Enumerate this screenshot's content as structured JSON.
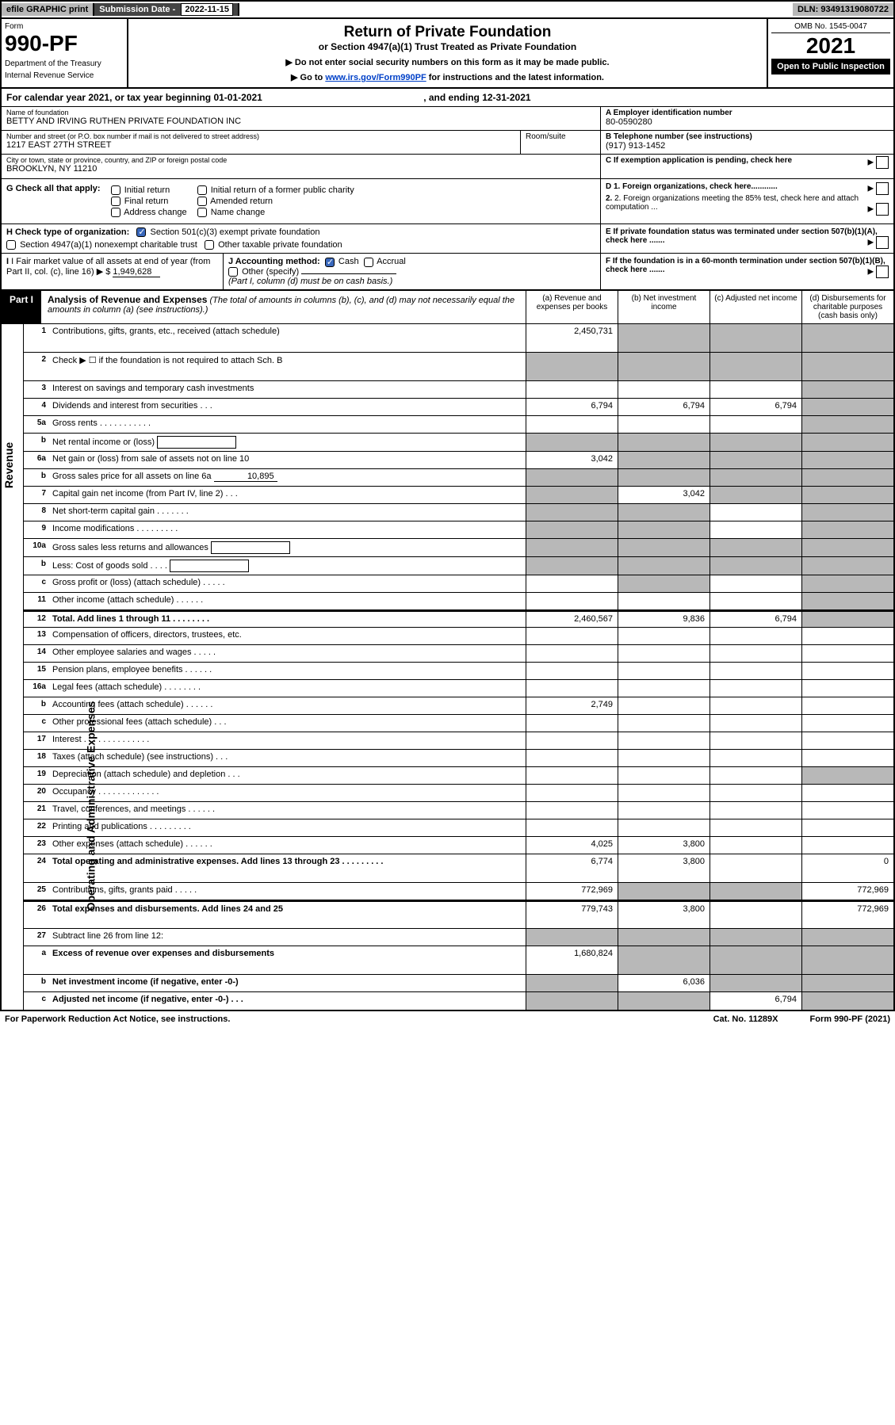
{
  "topbar": {
    "efile": "efile GRAPHIC print",
    "subdate_label": "Submission Date",
    "subdate_value": "2022-11-15",
    "dln": "DLN: 93491319080722"
  },
  "header": {
    "form_label": "Form",
    "form_number": "990-PF",
    "dept": "Department of the Treasury",
    "irs": "Internal Revenue Service",
    "title": "Return of Private Foundation",
    "subtitle": "or Section 4947(a)(1) Trust Treated as Private Foundation",
    "instr1": "▶ Do not enter social security numbers on this form as it may be made public.",
    "instr2_pre": "▶ Go to ",
    "instr2_link": "www.irs.gov/Form990PF",
    "instr2_post": " for instructions and the latest information.",
    "omb": "OMB No. 1545-0047",
    "year": "2021",
    "inspection": "Open to Public Inspection"
  },
  "calyear": {
    "text_pre": "For calendar year 2021, or tax year beginning ",
    "begin": "01-01-2021",
    "text_mid": " , and ending ",
    "end": "12-31-2021"
  },
  "info": {
    "name_label": "Name of foundation",
    "name": "BETTY AND IRVING RUTHEN PRIVATE FOUNDATION INC",
    "addr_label": "Number and street (or P.O. box number if mail is not delivered to street address)",
    "addr": "1217 EAST 27TH STREET",
    "room_label": "Room/suite",
    "city_label": "City or town, state or province, country, and ZIP or foreign postal code",
    "city": "BROOKLYN, NY  11210",
    "a_label": "A Employer identification number",
    "a_val": "80-0590280",
    "b_label": "B Telephone number (see instructions)",
    "b_val": "(917) 913-1452",
    "c_label": "C If exemption application is pending, check here"
  },
  "g_section": {
    "label": "G Check all that apply:",
    "opts": [
      "Initial return",
      "Final return",
      "Address change",
      "Initial return of a former public charity",
      "Amended return",
      "Name change"
    ]
  },
  "d_section": {
    "d1": "D 1. Foreign organizations, check here............",
    "d2": "2. Foreign organizations meeting the 85% test, check here and attach computation ...",
    "e": "E  If private foundation status was terminated under section 507(b)(1)(A), check here .......",
    "f": "F  If the foundation is in a 60-month termination under section 507(b)(1)(B), check here ......."
  },
  "h_section": {
    "label": "H Check type of organization:",
    "opt1": "Section 501(c)(3) exempt private foundation",
    "opt2": "Section 4947(a)(1) nonexempt charitable trust",
    "opt3": "Other taxable private foundation"
  },
  "i_section": {
    "label": "I Fair market value of all assets at end of year (from Part II, col. (c), line 16)",
    "value": "1,949,628",
    "j_label": "J Accounting method:",
    "j_cash": "Cash",
    "j_accrual": "Accrual",
    "j_other": "Other (specify)",
    "j_note": "(Part I, column (d) must be on cash basis.)"
  },
  "part1": {
    "label": "Part I",
    "title": "Analysis of Revenue and Expenses",
    "note": "(The total of amounts in columns (b), (c), and (d) may not necessarily equal the amounts in column (a) (see instructions).)",
    "col_a": "(a) Revenue and expenses per books",
    "col_b": "(b) Net investment income",
    "col_c": "(c) Adjusted net income",
    "col_d": "(d) Disbursements for charitable purposes (cash basis only)"
  },
  "side_labels": {
    "revenue": "Revenue",
    "expenses": "Operating and Administrative Expenses"
  },
  "rows": [
    {
      "num": "1",
      "desc": "Contributions, gifts, grants, etc., received (attach schedule)",
      "a": "2,450,731",
      "b": "",
      "c": "",
      "d": "",
      "tall": true,
      "grey_bcd": true
    },
    {
      "num": "2",
      "desc": "Check ▶ ☐ if the foundation is not required to attach Sch. B",
      "a": "",
      "b": "",
      "c": "",
      "d": "",
      "grey_all": true,
      "tall": true,
      "dots": true
    },
    {
      "num": "3",
      "desc": "Interest on savings and temporary cash investments",
      "a": "",
      "b": "",
      "c": "",
      "d": "",
      "grey_d": true
    },
    {
      "num": "4",
      "desc": "Dividends and interest from securities   .   .   .",
      "a": "6,794",
      "b": "6,794",
      "c": "6,794",
      "d": "",
      "grey_d": true
    },
    {
      "num": "5a",
      "desc": "Gross rents   .   .   .   .   .   .   .   .   .   .   .",
      "a": "",
      "b": "",
      "c": "",
      "d": "",
      "grey_d": true
    },
    {
      "num": "b",
      "desc": "Net rental income or (loss)",
      "a": "",
      "b": "",
      "c": "",
      "d": "",
      "has_box": true,
      "grey_all": true
    },
    {
      "num": "6a",
      "desc": "Net gain or (loss) from sale of assets not on line 10",
      "a": "3,042",
      "b": "",
      "c": "",
      "d": "",
      "grey_bcd": true
    },
    {
      "num": "b",
      "desc": "Gross sales price for all assets on line 6a",
      "sub_val": "10,895",
      "a": "",
      "b": "",
      "c": "",
      "d": "",
      "grey_all": true,
      "has_sub": true
    },
    {
      "num": "7",
      "desc": "Capital gain net income (from Part IV, line 2)   .   .   .",
      "a": "",
      "b": "3,042",
      "c": "",
      "d": "",
      "grey_a": true,
      "grey_cd": true
    },
    {
      "num": "8",
      "desc": "Net short-term capital gain   .   .   .   .   .   .   .",
      "a": "",
      "b": "",
      "c": "",
      "d": "",
      "grey_ab": true,
      "grey_d": true
    },
    {
      "num": "9",
      "desc": "Income modifications   .   .   .   .   .   .   .   .   .",
      "a": "",
      "b": "",
      "c": "",
      "d": "",
      "grey_ab": true,
      "grey_d": true
    },
    {
      "num": "10a",
      "desc": "Gross sales less returns and allowances",
      "a": "",
      "b": "",
      "c": "",
      "d": "",
      "has_box": true,
      "grey_all": true
    },
    {
      "num": "b",
      "desc": "Less: Cost of goods sold   .   .   .   .",
      "a": "",
      "b": "",
      "c": "",
      "d": "",
      "has_box": true,
      "grey_all": true
    },
    {
      "num": "c",
      "desc": "Gross profit or (loss) (attach schedule)   .   .   .   .   .",
      "a": "",
      "b": "",
      "c": "",
      "d": "",
      "grey_b": true,
      "grey_d": true
    },
    {
      "num": "11",
      "desc": "Other income (attach schedule)   .   .   .   .   .   .",
      "a": "",
      "b": "",
      "c": "",
      "d": "",
      "grey_d": true
    },
    {
      "num": "12",
      "desc": "Total. Add lines 1 through 11   .   .   .   .   .   .   .   .",
      "a": "2,460,567",
      "b": "9,836",
      "c": "6,794",
      "d": "",
      "bold": true,
      "grey_d": true,
      "split": true
    },
    {
      "num": "13",
      "desc": "Compensation of officers, directors, trustees, etc.",
      "a": "",
      "b": "",
      "c": "",
      "d": ""
    },
    {
      "num": "14",
      "desc": "Other employee salaries and wages   .   .   .   .   .",
      "a": "",
      "b": "",
      "c": "",
      "d": ""
    },
    {
      "num": "15",
      "desc": "Pension plans, employee benefits   .   .   .   .   .   .",
      "a": "",
      "b": "",
      "c": "",
      "d": ""
    },
    {
      "num": "16a",
      "desc": "Legal fees (attach schedule)   .   .   .   .   .   .   .   .",
      "a": "",
      "b": "",
      "c": "",
      "d": ""
    },
    {
      "num": "b",
      "desc": "Accounting fees (attach schedule)   .   .   .   .   .   .",
      "a": "2,749",
      "b": "",
      "c": "",
      "d": ""
    },
    {
      "num": "c",
      "desc": "Other professional fees (attach schedule)   .   .   .",
      "a": "",
      "b": "",
      "c": "",
      "d": ""
    },
    {
      "num": "17",
      "desc": "Interest   .   .   .   .   .   .   .   .   .   .   .   .   .   .",
      "a": "",
      "b": "",
      "c": "",
      "d": ""
    },
    {
      "num": "18",
      "desc": "Taxes (attach schedule) (see instructions)   .   .   .",
      "a": "",
      "b": "",
      "c": "",
      "d": ""
    },
    {
      "num": "19",
      "desc": "Depreciation (attach schedule) and depletion   .   .   .",
      "a": "",
      "b": "",
      "c": "",
      "d": "",
      "grey_d": true
    },
    {
      "num": "20",
      "desc": "Occupancy   .   .   .   .   .   .   .   .   .   .   .   .   .",
      "a": "",
      "b": "",
      "c": "",
      "d": ""
    },
    {
      "num": "21",
      "desc": "Travel, conferences, and meetings   .   .   .   .   .   .",
      "a": "",
      "b": "",
      "c": "",
      "d": ""
    },
    {
      "num": "22",
      "desc": "Printing and publications   .   .   .   .   .   .   .   .   .",
      "a": "",
      "b": "",
      "c": "",
      "d": ""
    },
    {
      "num": "23",
      "desc": "Other expenses (attach schedule)   .   .   .   .   .   .",
      "a": "4,025",
      "b": "3,800",
      "c": "",
      "d": ""
    },
    {
      "num": "24",
      "desc": "Total operating and administrative expenses. Add lines 13 through 23   .   .   .   .   .   .   .   .   .",
      "a": "6,774",
      "b": "3,800",
      "c": "",
      "d": "0",
      "bold": true,
      "tall": true
    },
    {
      "num": "25",
      "desc": "Contributions, gifts, grants paid   .   .   .   .   .",
      "a": "772,969",
      "b": "",
      "c": "",
      "d": "772,969",
      "grey_bc": true
    },
    {
      "num": "26",
      "desc": "Total expenses and disbursements. Add lines 24 and 25",
      "a": "779,743",
      "b": "3,800",
      "c": "",
      "d": "772,969",
      "bold": true,
      "tall": true,
      "split": true
    },
    {
      "num": "27",
      "desc": "Subtract line 26 from line 12:",
      "a": "",
      "b": "",
      "c": "",
      "d": "",
      "grey_all": true
    },
    {
      "num": "a",
      "desc": "Excess of revenue over expenses and disbursements",
      "a": "1,680,824",
      "b": "",
      "c": "",
      "d": "",
      "bold": true,
      "grey_bcd": true,
      "tall": true
    },
    {
      "num": "b",
      "desc": "Net investment income (if negative, enter -0-)",
      "a": "",
      "b": "6,036",
      "c": "",
      "d": "",
      "bold": true,
      "grey_a": true,
      "grey_cd": true
    },
    {
      "num": "c",
      "desc": "Adjusted net income (if negative, enter -0-)   .   .   .",
      "a": "",
      "b": "",
      "c": "6,794",
      "d": "",
      "bold": true,
      "grey_ab": true,
      "grey_d": true
    }
  ],
  "footer": {
    "left": "For Paperwork Reduction Act Notice, see instructions.",
    "center": "Cat. No. 11289X",
    "right": "Form 990-PF (2021)"
  }
}
